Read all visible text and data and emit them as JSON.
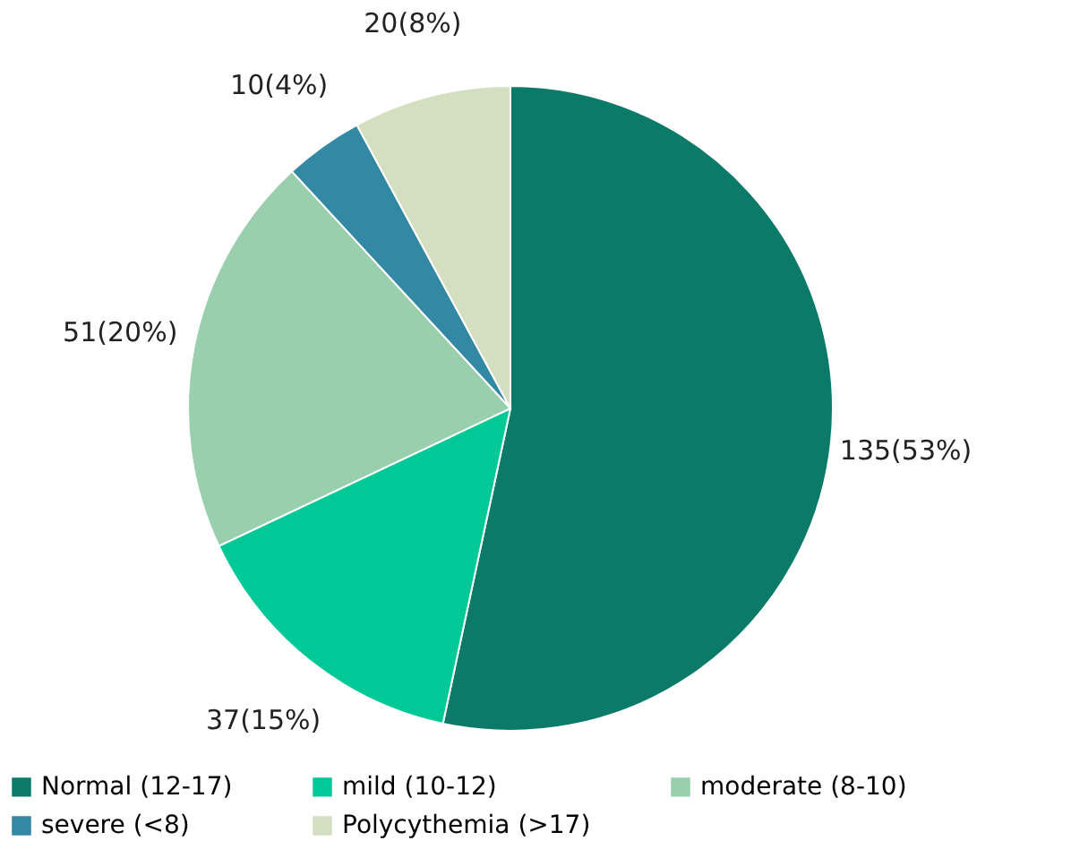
{
  "chart_data": {
    "type": "pie",
    "categories": [
      "Normal (12-17)",
      "mild (10-12)",
      "moderate (8-10)",
      "severe (<8)",
      "Polycythemia (>17)"
    ],
    "values": [
      135,
      37,
      51,
      10,
      20
    ],
    "colors": [
      "#0b7a68",
      "#00c896",
      "#99cfad",
      "#3388a3",
      "#d3dfc0"
    ],
    "value_labels": [
      "135(53%)",
      "37(15%)",
      "51(20%)",
      "10(4%)",
      "20(8%)"
    ],
    "legend": "bottom"
  }
}
